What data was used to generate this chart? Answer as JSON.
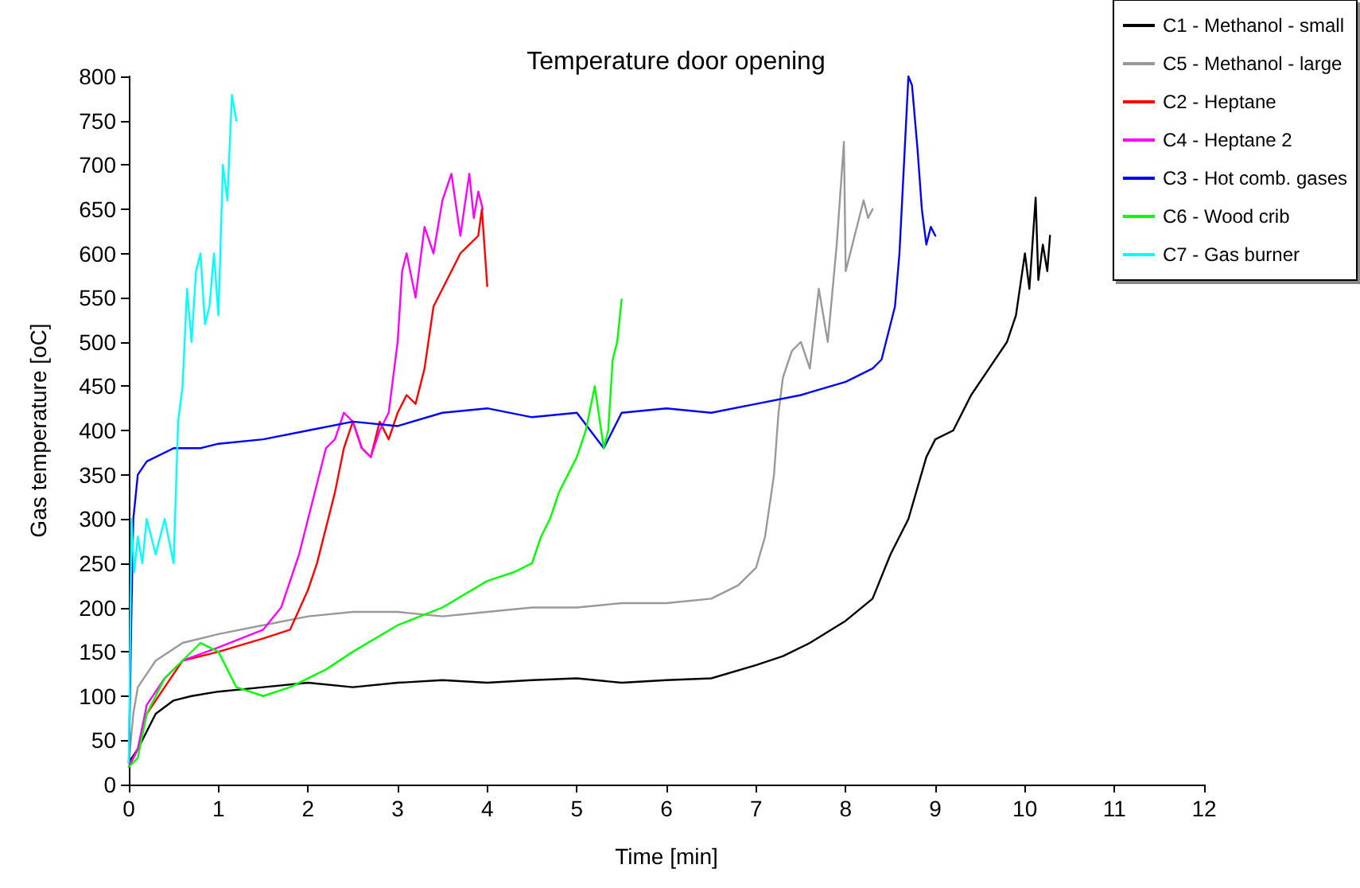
{
  "chart_data": {
    "type": "line",
    "title": "Temperature door opening",
    "xlabel": "Time [min]",
    "ylabel": "Gas temperature [oC]",
    "xlim": [
      0,
      12
    ],
    "xticks": [
      0,
      1,
      2,
      3,
      4,
      5,
      6,
      7,
      8,
      9,
      10,
      11,
      12
    ],
    "ylim": [
      0,
      800
    ],
    "yticks": [
      0,
      50,
      100,
      150,
      200,
      250,
      300,
      350,
      400,
      450,
      500,
      550,
      600,
      650,
      700,
      750,
      800
    ],
    "grid": false,
    "legend": "top right",
    "marker": "none",
    "line_style": "solid",
    "series": [
      {
        "name": "C1 - Methanol - small",
        "color": "#000000",
        "x": [
          0,
          0.1,
          0.3,
          0.5,
          0.7,
          1,
          1.5,
          2,
          2.5,
          3,
          3.5,
          4,
          4.5,
          5,
          5.5,
          6,
          6.5,
          7,
          7.3,
          7.6,
          8,
          8.3,
          8.5,
          8.7,
          8.9,
          9,
          9.2,
          9.4,
          9.6,
          9.8,
          9.9,
          10,
          10.05,
          10.12,
          10.15,
          10.2,
          10.25,
          10.28
        ],
        "values": [
          25,
          40,
          80,
          95,
          100,
          105,
          110,
          115,
          110,
          115,
          118,
          115,
          118,
          120,
          115,
          118,
          120,
          135,
          145,
          160,
          185,
          210,
          260,
          300,
          370,
          390,
          400,
          440,
          470,
          500,
          530,
          600,
          560,
          663,
          570,
          610,
          580,
          620
        ]
      },
      {
        "name": "C5 - Methanol - large",
        "color": "#999999",
        "x": [
          0,
          0.05,
          0.1,
          0.3,
          0.6,
          1,
          1.5,
          2,
          2.5,
          3,
          3.5,
          4,
          4.5,
          5,
          5.5,
          6,
          6.5,
          6.8,
          7,
          7.1,
          7.2,
          7.25,
          7.3,
          7.4,
          7.5,
          7.6,
          7.7,
          7.8,
          7.9,
          7.98,
          8.0,
          8.1,
          8.2,
          8.25,
          8.3
        ],
        "values": [
          25,
          80,
          110,
          140,
          160,
          170,
          180,
          190,
          195,
          195,
          190,
          195,
          200,
          200,
          205,
          205,
          210,
          225,
          245,
          280,
          350,
          420,
          460,
          490,
          500,
          470,
          560,
          500,
          610,
          726,
          580,
          620,
          660,
          640,
          650
        ]
      },
      {
        "name": "C2 - Heptane",
        "color": "#ff0000",
        "x": [
          0,
          0.1,
          0.2,
          0.4,
          0.6,
          1,
          1.5,
          1.8,
          2,
          2.1,
          2.2,
          2.3,
          2.4,
          2.5,
          2.6,
          2.7,
          2.8,
          2.9,
          3,
          3.1,
          3.2,
          3.3,
          3.4,
          3.5,
          3.6,
          3.7,
          3.8,
          3.9,
          3.94,
          4.0
        ],
        "values": [
          20,
          40,
          80,
          110,
          140,
          150,
          165,
          175,
          220,
          250,
          290,
          330,
          380,
          410,
          380,
          370,
          410,
          390,
          420,
          440,
          430,
          470,
          540,
          560,
          580,
          600,
          610,
          620,
          650,
          563
        ]
      },
      {
        "name": "C4 - Heptane 2",
        "color": "#ff00ff",
        "x": [
          0,
          0.1,
          0.2,
          0.4,
          0.6,
          1,
          1.5,
          1.7,
          1.8,
          1.9,
          2,
          2.1,
          2.2,
          2.3,
          2.4,
          2.5,
          2.6,
          2.7,
          2.8,
          2.9,
          3,
          3.05,
          3.1,
          3.2,
          3.3,
          3.4,
          3.5,
          3.6,
          3.7,
          3.8,
          3.85,
          3.9,
          3.95
        ],
        "values": [
          20,
          40,
          90,
          120,
          140,
          155,
          175,
          200,
          230,
          260,
          300,
          340,
          380,
          390,
          420,
          410,
          380,
          370,
          400,
          420,
          500,
          580,
          600,
          550,
          630,
          600,
          660,
          690,
          620,
          690,
          640,
          670,
          650
        ]
      },
      {
        "name": "C3 - Hot comb. gases",
        "color": "#0000ff",
        "x": [
          0,
          0.03,
          0.05,
          0.1,
          0.2,
          0.3,
          0.5,
          0.8,
          1,
          1.5,
          2,
          2.5,
          3,
          3.5,
          4,
          4.5,
          5,
          5.3,
          5.5,
          6,
          6.5,
          7,
          7.5,
          8,
          8.3,
          8.4,
          8.5,
          8.55,
          8.6,
          8.65,
          8.7,
          8.74,
          8.8,
          8.85,
          8.9,
          8.95,
          9.0
        ],
        "values": [
          25,
          200,
          300,
          350,
          365,
          370,
          380,
          380,
          385,
          390,
          400,
          410,
          405,
          420,
          425,
          415,
          420,
          380,
          420,
          425,
          420,
          430,
          440,
          455,
          470,
          480,
          520,
          540,
          600,
          700,
          800,
          790,
          720,
          650,
          610,
          630,
          620
        ]
      },
      {
        "name": "C6 - Wood crib",
        "color": "#00ff00",
        "x": [
          0,
          0.1,
          0.2,
          0.4,
          0.6,
          0.8,
          1,
          1.2,
          1.5,
          1.8,
          2.2,
          2.5,
          3,
          3.5,
          4,
          4.3,
          4.5,
          4.6,
          4.7,
          4.8,
          4.9,
          5,
          5.1,
          5.2,
          5.3,
          5.35,
          5.4,
          5.45,
          5.5
        ],
        "values": [
          20,
          30,
          80,
          120,
          140,
          160,
          150,
          110,
          100,
          110,
          130,
          150,
          180,
          200,
          230,
          240,
          250,
          280,
          300,
          330,
          350,
          370,
          400,
          450,
          380,
          400,
          480,
          500,
          548
        ]
      },
      {
        "name": "C7 - Gas burner",
        "color": "#00ffff",
        "x": [
          0,
          0.03,
          0.06,
          0.1,
          0.15,
          0.2,
          0.3,
          0.4,
          0.5,
          0.55,
          0.6,
          0.65,
          0.7,
          0.75,
          0.8,
          0.85,
          0.9,
          0.95,
          1.0,
          1.05,
          1.1,
          1.15,
          1.2
        ],
        "values": [
          25,
          300,
          240,
          280,
          250,
          300,
          260,
          300,
          250,
          410,
          450,
          560,
          500,
          580,
          600,
          520,
          540,
          600,
          530,
          700,
          660,
          779,
          750
        ]
      }
    ]
  }
}
